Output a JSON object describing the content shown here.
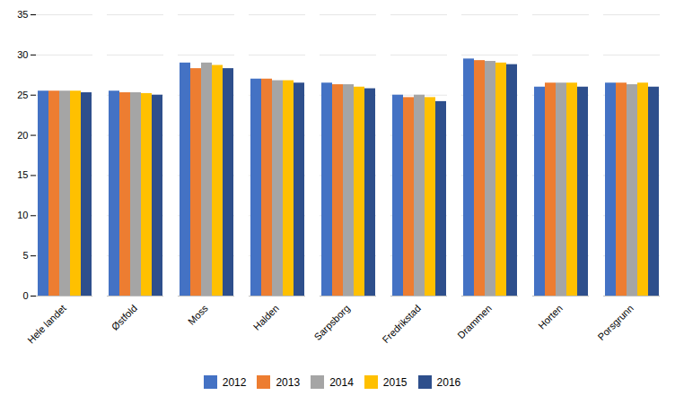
{
  "chart_data": {
    "type": "bar",
    "categories": [
      "Hele landet",
      "Østfold",
      "Moss",
      "Halden",
      "Sarpsborg",
      "Fredrikstad",
      "Drammen",
      "Horten",
      "Porsgrunn"
    ],
    "series": [
      {
        "name": "2012",
        "color": "#4472C4",
        "values": [
          25.5,
          25.5,
          29.0,
          27.0,
          26.5,
          25.0,
          29.5,
          26.0,
          26.5
        ]
      },
      {
        "name": "2013",
        "color": "#ED7D31",
        "values": [
          25.5,
          25.3,
          28.3,
          27.0,
          26.3,
          24.7,
          29.3,
          26.5,
          26.5
        ]
      },
      {
        "name": "2014",
        "color": "#A5A5A5",
        "values": [
          25.5,
          25.3,
          29.0,
          26.8,
          26.3,
          25.0,
          29.2,
          26.5,
          26.3
        ]
      },
      {
        "name": "2015",
        "color": "#FFC000",
        "values": [
          25.5,
          25.2,
          28.7,
          26.8,
          26.0,
          24.7,
          29.0,
          26.5,
          26.5
        ]
      },
      {
        "name": "2016",
        "color": "#2E4F8C",
        "values": [
          25.3,
          25.0,
          28.3,
          26.5,
          25.8,
          24.2,
          28.8,
          26.0,
          26.0
        ]
      }
    ],
    "ylim": [
      0,
      35
    ],
    "yticks": [
      0,
      5,
      10,
      15,
      20,
      25,
      30,
      35
    ],
    "grid": true,
    "legend": "bottom"
  }
}
